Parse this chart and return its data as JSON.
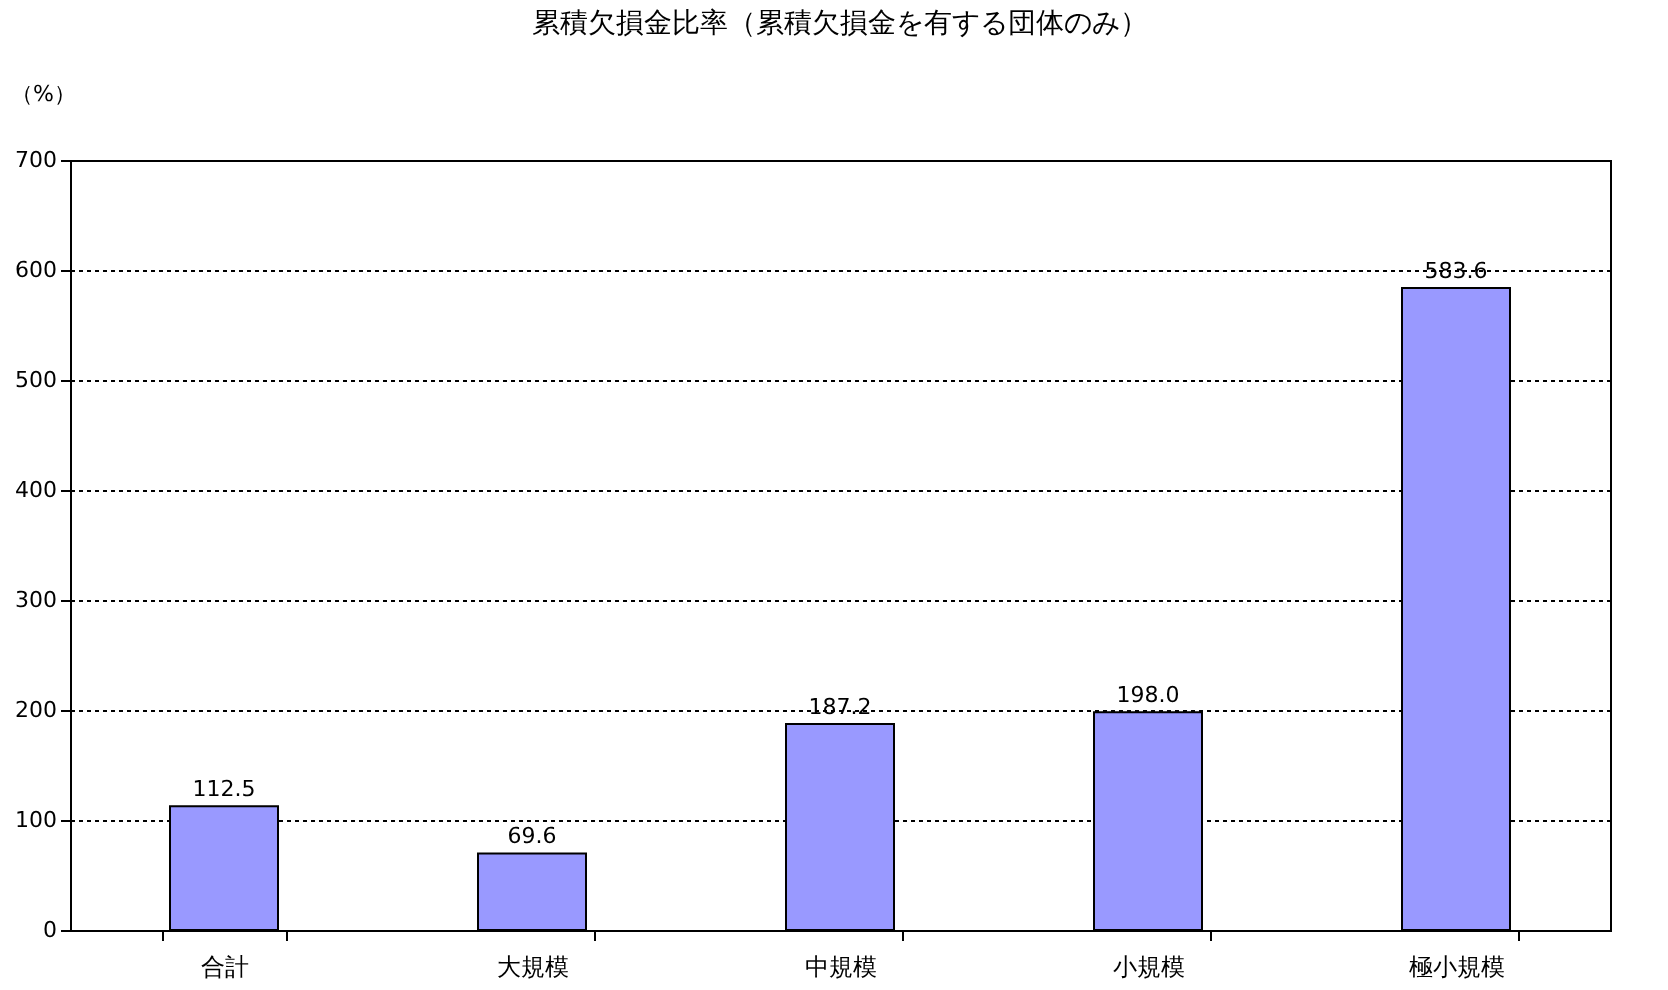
{
  "chart_data": {
    "type": "bar",
    "title": "累積欠損金比率（累積欠損金を有する団体のみ）",
    "ylabel": "（%）",
    "categories": [
      "合計",
      "大規模",
      "中規模",
      "小規模",
      "極小規模"
    ],
    "values": [
      112.5,
      69.6,
      187.2,
      198.0,
      583.6
    ],
    "value_labels": [
      "112.5",
      "69.6",
      "187.2",
      "198.0",
      "583.6"
    ],
    "color": "#9999ff",
    "ylim": [
      0,
      700
    ],
    "yticks": [
      0,
      100,
      200,
      300,
      400,
      500,
      600,
      700
    ],
    "grid": "y"
  }
}
